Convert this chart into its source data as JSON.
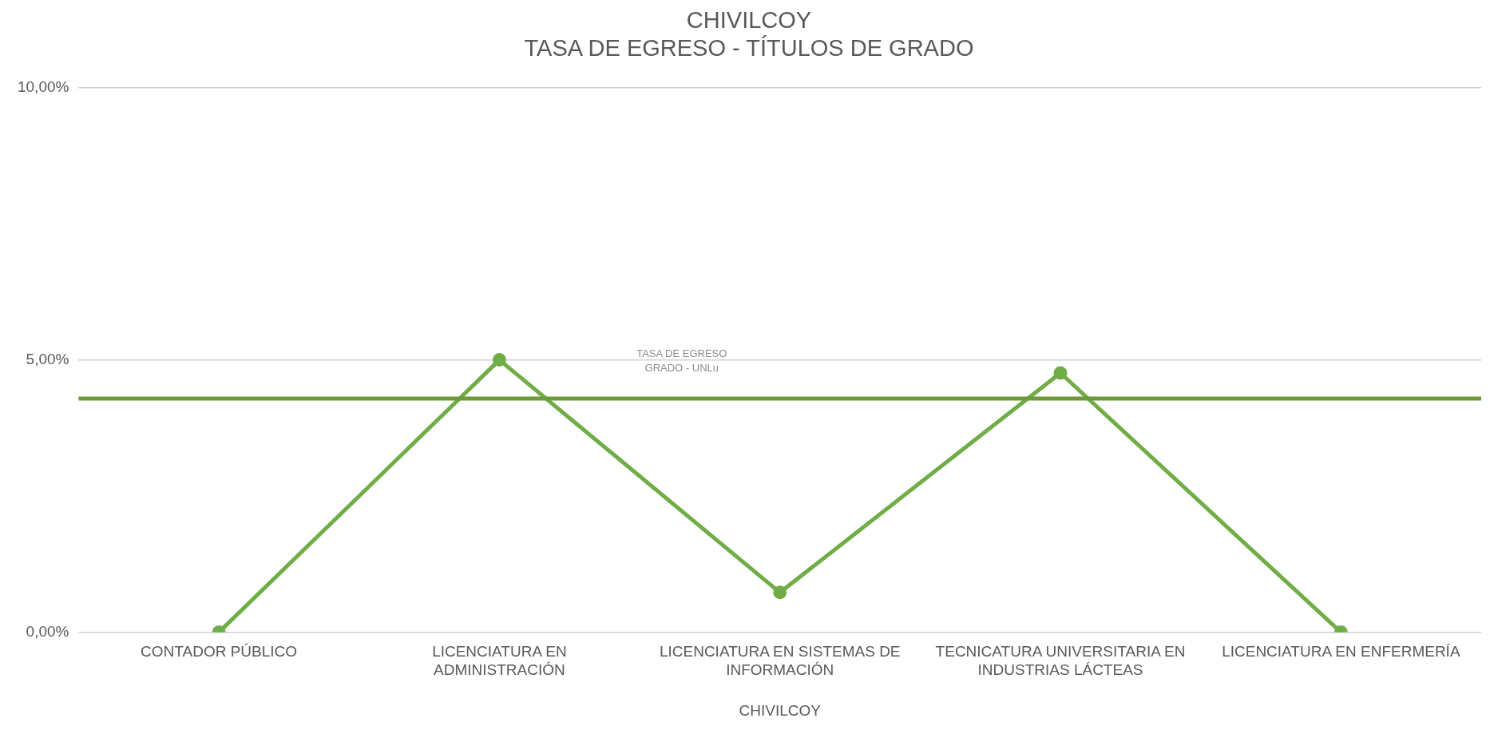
{
  "chart_data": {
    "type": "line",
    "title": "CHIVILCOY",
    "subtitle": "TASA DE EGRESO - TÍTULOS DE GRADO",
    "xlabel": "CHIVILCOY",
    "categories": [
      "CONTADOR PÚBLICO",
      "LICENCIATURA EN ADMINISTRACIÓN",
      "LICENCIATURA EN SISTEMAS DE INFORMACIÓN",
      "TECNICATURA UNIVERSITARIA EN INDUSTRIAS LÁCTEAS",
      "LICENCIATURA EN ENFERMERÍA"
    ],
    "series": [
      {
        "color": "#70ad47",
        "values": [
          0,
          5.0,
          0.73,
          4.76,
          0
        ]
      }
    ],
    "ylim": [
      0,
      10
    ],
    "yticks": [
      {
        "value": 0,
        "label": "0,00%"
      },
      {
        "value": 5,
        "label": "5,00%"
      },
      {
        "value": 10,
        "label": "10,00%"
      }
    ],
    "ref_lines": [
      {
        "axis": "y",
        "value": 4.29,
        "label": "TASA DE EGRESO GRADO - UNLu",
        "color": "#6e9a3c"
      }
    ],
    "grid": "y",
    "legend": false,
    "marker": "circle",
    "line_style": "solid"
  }
}
